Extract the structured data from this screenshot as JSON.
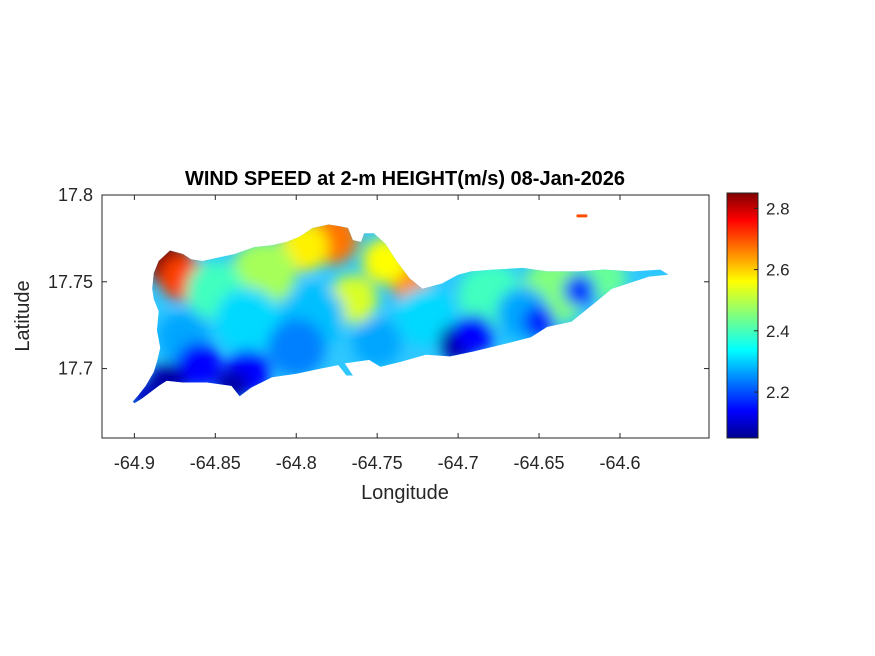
{
  "chart_data": {
    "type": "heatmap",
    "title": "WIND SPEED at 2-m HEIGHT(m/s) 08-Jan-2026",
    "xlabel": "Longitude",
    "ylabel": "Latitude",
    "xlim": [
      -64.92,
      -64.545
    ],
    "ylim": [
      17.66,
      17.8
    ],
    "x_ticks": [
      -64.9,
      -64.85,
      -64.8,
      -64.75,
      -64.7,
      -64.65,
      -64.6
    ],
    "x_tick_labels": [
      "-64.9",
      "-64.85",
      "-64.8",
      "-64.75",
      "-64.7",
      "-64.65",
      "-64.6"
    ],
    "y_ticks": [
      17.7,
      17.75,
      17.8
    ],
    "y_tick_labels": [
      "17.7",
      "17.75",
      "17.8"
    ],
    "colorbar": {
      "colormap": "jet",
      "range": [
        2.05,
        2.85
      ],
      "ticks": [
        2.2,
        2.4,
        2.6,
        2.8
      ],
      "tick_labels": [
        "2.2",
        "2.4",
        "2.6",
        "2.8"
      ]
    },
    "grid": false,
    "region_outline": [
      [
        -64.9,
        17.68
      ],
      [
        -64.895,
        17.683
      ],
      [
        -64.885,
        17.69
      ],
      [
        -64.88,
        17.693
      ],
      [
        -64.87,
        17.692
      ],
      [
        -64.855,
        17.692
      ],
      [
        -64.84,
        17.69
      ],
      [
        -64.835,
        17.684
      ],
      [
        -64.828,
        17.689
      ],
      [
        -64.815,
        17.695
      ],
      [
        -64.8,
        17.697
      ],
      [
        -64.785,
        17.7
      ],
      [
        -64.774,
        17.702
      ],
      [
        -64.769,
        17.696
      ],
      [
        -64.765,
        17.696
      ],
      [
        -64.77,
        17.703
      ],
      [
        -64.755,
        17.705
      ],
      [
        -64.748,
        17.701
      ],
      [
        -64.735,
        17.704
      ],
      [
        -64.72,
        17.708
      ],
      [
        -64.705,
        17.707
      ],
      [
        -64.69,
        17.71
      ],
      [
        -64.672,
        17.714
      ],
      [
        -64.655,
        17.718
      ],
      [
        -64.645,
        17.724
      ],
      [
        -64.63,
        17.727
      ],
      [
        -64.618,
        17.736
      ],
      [
        -64.605,
        17.746
      ],
      [
        -64.595,
        17.749
      ],
      [
        -64.582,
        17.753
      ],
      [
        -64.57,
        17.754
      ],
      [
        -64.575,
        17.757
      ],
      [
        -64.592,
        17.756
      ],
      [
        -64.61,
        17.757
      ],
      [
        -64.625,
        17.756
      ],
      [
        -64.645,
        17.756
      ],
      [
        -64.66,
        17.758
      ],
      [
        -64.678,
        17.757
      ],
      [
        -64.692,
        17.756
      ],
      [
        -64.7,
        17.754
      ],
      [
        -64.71,
        17.749
      ],
      [
        -64.722,
        17.746
      ],
      [
        -64.73,
        17.752
      ],
      [
        -64.738,
        17.762
      ],
      [
        -64.745,
        17.772
      ],
      [
        -64.752,
        17.778
      ],
      [
        -64.758,
        17.778
      ],
      [
        -64.76,
        17.773
      ],
      [
        -64.765,
        17.774
      ],
      [
        -64.768,
        17.781
      ],
      [
        -64.773,
        17.782
      ],
      [
        -64.78,
        17.783
      ],
      [
        -64.79,
        17.781
      ],
      [
        -64.798,
        17.776
      ],
      [
        -64.806,
        17.773
      ],
      [
        -64.815,
        17.771
      ],
      [
        -64.826,
        17.77
      ],
      [
        -64.838,
        17.766
      ],
      [
        -64.848,
        17.764
      ],
      [
        -64.858,
        17.762
      ],
      [
        -64.865,
        17.763
      ],
      [
        -64.87,
        17.766
      ],
      [
        -64.878,
        17.768
      ],
      [
        -64.885,
        17.762
      ],
      [
        -64.888,
        17.755
      ],
      [
        -64.889,
        17.746
      ],
      [
        -64.888,
        17.74
      ],
      [
        -64.885,
        17.733
      ],
      [
        -64.886,
        17.722
      ],
      [
        -64.884,
        17.712
      ],
      [
        -64.886,
        17.704
      ],
      [
        -64.888,
        17.698
      ],
      [
        -64.893,
        17.69
      ],
      [
        -64.898,
        17.684
      ],
      [
        -64.901,
        17.681
      ]
    ],
    "islet": [
      [
        -64.626,
        17.788
      ],
      [
        -64.621,
        17.788
      ]
    ],
    "wind_cells": [
      {
        "lon": -64.878,
        "lat": 17.76,
        "r": 0.014,
        "value": 2.85
      },
      {
        "lon": -64.87,
        "lat": 17.752,
        "r": 0.014,
        "value": 2.7
      },
      {
        "lon": -64.778,
        "lat": 17.775,
        "r": 0.016,
        "value": 2.66
      },
      {
        "lon": -64.795,
        "lat": 17.77,
        "r": 0.015,
        "value": 2.56
      },
      {
        "lon": -64.73,
        "lat": 17.75,
        "r": 0.012,
        "value": 2.64
      },
      {
        "lon": -64.745,
        "lat": 17.762,
        "r": 0.014,
        "value": 2.55
      },
      {
        "lon": -64.765,
        "lat": 17.74,
        "r": 0.015,
        "value": 2.52
      },
      {
        "lon": -64.82,
        "lat": 17.755,
        "r": 0.02,
        "value": 2.48
      },
      {
        "lon": -64.85,
        "lat": 17.745,
        "r": 0.018,
        "value": 2.4
      },
      {
        "lon": -64.68,
        "lat": 17.742,
        "r": 0.02,
        "value": 2.4
      },
      {
        "lon": -64.64,
        "lat": 17.745,
        "r": 0.02,
        "value": 2.45
      },
      {
        "lon": -64.61,
        "lat": 17.752,
        "r": 0.014,
        "value": 2.43
      },
      {
        "lon": -64.83,
        "lat": 17.728,
        "r": 0.02,
        "value": 2.32
      },
      {
        "lon": -64.79,
        "lat": 17.73,
        "r": 0.02,
        "value": 2.3
      },
      {
        "lon": -64.72,
        "lat": 17.73,
        "r": 0.018,
        "value": 2.32
      },
      {
        "lon": -64.66,
        "lat": 17.732,
        "r": 0.016,
        "value": 2.28
      },
      {
        "lon": -64.87,
        "lat": 17.718,
        "r": 0.016,
        "value": 2.28
      },
      {
        "lon": -64.8,
        "lat": 17.712,
        "r": 0.018,
        "value": 2.25
      },
      {
        "lon": -64.75,
        "lat": 17.715,
        "r": 0.015,
        "value": 2.28
      },
      {
        "lon": -64.86,
        "lat": 17.702,
        "r": 0.014,
        "value": 2.15
      },
      {
        "lon": -64.83,
        "lat": 17.698,
        "r": 0.014,
        "value": 2.15
      },
      {
        "lon": -64.88,
        "lat": 17.692,
        "r": 0.012,
        "value": 2.08
      },
      {
        "lon": -64.84,
        "lat": 17.69,
        "r": 0.01,
        "value": 2.08
      },
      {
        "lon": -64.7,
        "lat": 17.715,
        "r": 0.012,
        "value": 2.08
      },
      {
        "lon": -64.69,
        "lat": 17.72,
        "r": 0.012,
        "value": 2.15
      },
      {
        "lon": -64.65,
        "lat": 17.727,
        "r": 0.01,
        "value": 2.18
      },
      {
        "lon": -64.625,
        "lat": 17.745,
        "r": 0.01,
        "value": 2.2
      },
      {
        "lon": -64.895,
        "lat": 17.684,
        "r": 0.008,
        "value": 2.1
      },
      {
        "lon": -64.624,
        "lat": 17.788,
        "r": 0.003,
        "value": 2.7
      }
    ]
  }
}
